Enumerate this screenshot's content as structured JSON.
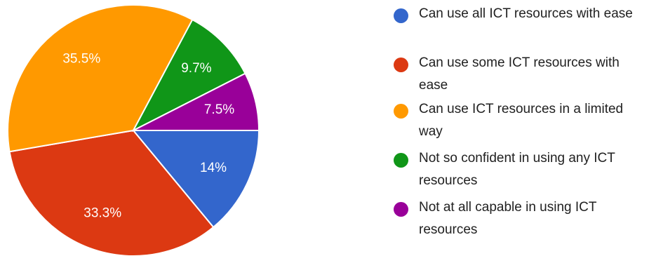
{
  "chart_data": {
    "type": "pie",
    "slices": [
      {
        "name": "Can use all ICT resources with ease",
        "value": 14,
        "label": "14%",
        "color": "#3366cc"
      },
      {
        "name": "Can use some ICT resources with ease",
        "value": 33.3,
        "label": "33.3%",
        "color": "#dc3912"
      },
      {
        "name": "Can use ICT resources in a limited way",
        "value": 35.5,
        "label": "35.5%",
        "color": "#ff9900"
      },
      {
        "name": "Not so confident in using any ICT resources",
        "value": 9.7,
        "label": "9.7%",
        "color": "#109618"
      },
      {
        "name": "Not at all capable in using ICT resources",
        "value": 7.5,
        "label": "7.5%",
        "color": "#990099"
      }
    ],
    "legend_position": "right",
    "start_angle_deg": 90,
    "direction": "clockwise"
  }
}
